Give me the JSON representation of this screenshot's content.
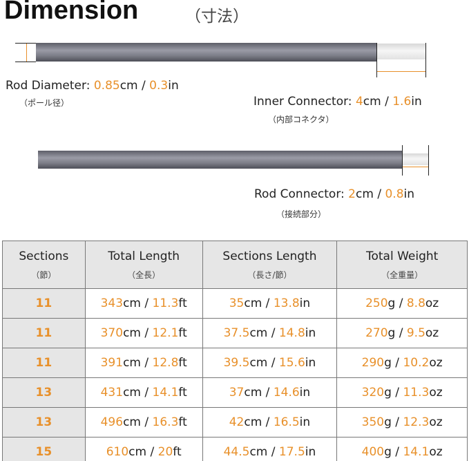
{
  "title": "Dimension",
  "title_jp": "（寸法）",
  "accent_color": "#e8902a",
  "rod_diameter": {
    "label": "Rod Diameter:",
    "cm": "0.85",
    "in": "0.3",
    "jp": "（ポール径）"
  },
  "inner_connector": {
    "label": "Inner Connector:",
    "cm": "4",
    "in": "1.6",
    "jp": "（内部コネクタ）"
  },
  "rod_connector": {
    "label": "Rod Connector:",
    "cm": "2",
    "in": "0.8",
    "jp": "（接続部分）"
  },
  "units": {
    "cm": "cm",
    "in": "in",
    "ft": "ft",
    "g": "g",
    "oz": "oz",
    "sep": " / "
  },
  "table": {
    "headers": [
      {
        "en": "Sections",
        "jp": "（節）"
      },
      {
        "en": "Total Length",
        "jp": "（全長）"
      },
      {
        "en": "Sections Length",
        "jp": "（長さ/節）"
      },
      {
        "en": "Total Weight",
        "jp": "（全重量）"
      }
    ],
    "rows": [
      {
        "sections": "11",
        "total_cm": "343",
        "total_ft": "11.3",
        "sec_cm": "35",
        "sec_in": "13.8",
        "g": "250",
        "oz": "8.8"
      },
      {
        "sections": "11",
        "total_cm": "370",
        "total_ft": "12.1",
        "sec_cm": "37.5",
        "sec_in": "14.8",
        "g": "270",
        "oz": "9.5"
      },
      {
        "sections": "11",
        "total_cm": "391",
        "total_ft": "12.8",
        "sec_cm": "39.5",
        "sec_in": "15.6",
        "g": "290",
        "oz": "10.2"
      },
      {
        "sections": "13",
        "total_cm": "431",
        "total_ft": "14.1",
        "sec_cm": "37",
        "sec_in": "14.6",
        "g": "320",
        "oz": "11.3"
      },
      {
        "sections": "13",
        "total_cm": "496",
        "total_ft": "16.3",
        "sec_cm": "42",
        "sec_in": "16.5",
        "g": "350",
        "oz": "12.3"
      },
      {
        "sections": "15",
        "total_cm": "610",
        "total_ft": "20",
        "sec_cm": "44.5",
        "sec_in": "17.5",
        "g": "400",
        "oz": "14.1"
      }
    ]
  }
}
